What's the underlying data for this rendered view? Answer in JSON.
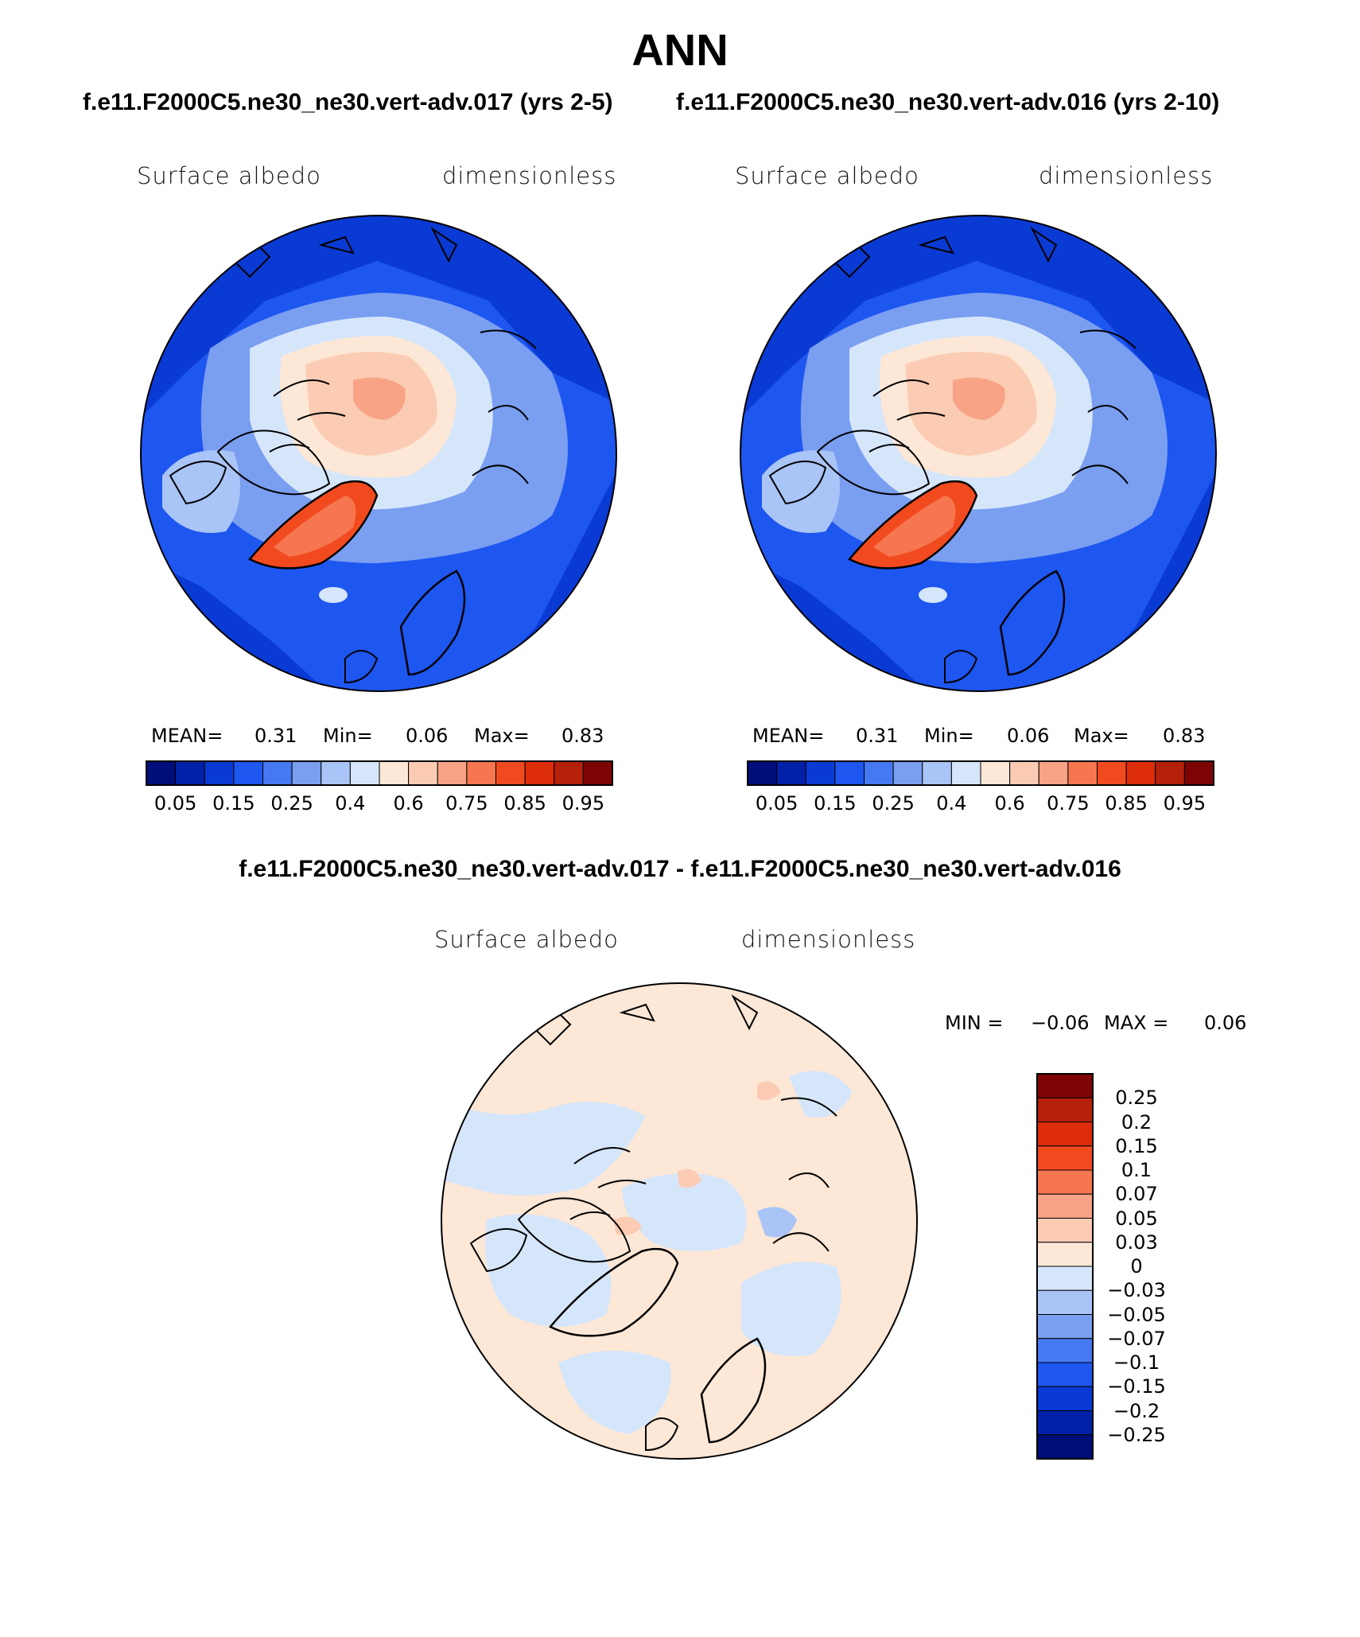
{
  "title": "ANN",
  "subtitle_left": "f.e11.F2000C5.ne30_ne30.vert-adv.017 (yrs 2-5)",
  "subtitle_right": "f.e11.F2000C5.ne30_ne30.vert-adv.016 (yrs 2-10)",
  "subtitle_diff": "f.e11.F2000C5.ne30_ne30.vert-adv.017 - f.e11.F2000C5.ne30_ne30.vert-adv.016",
  "panels": [
    {
      "variable": "Surface albedo",
      "units": "dimensionless",
      "mean_label": "MEAN=",
      "mean": "0.31",
      "min_label": "Min=",
      "min": "0.06",
      "max_label": "Max=",
      "max": "0.83"
    },
    {
      "variable": "Surface albedo",
      "units": "dimensionless",
      "mean_label": "MEAN=",
      "mean": "0.31",
      "min_label": "Min=",
      "min": "0.06",
      "max_label": "Max=",
      "max": "0.83"
    }
  ],
  "diff_panel": {
    "variable": "Surface albedo",
    "units": "dimensionless",
    "min_label": "MIN =",
    "min": "−0.06",
    "max_label": "MAX =",
    "max": "0.06"
  },
  "colorbar_main": {
    "colors": [
      "#000e7a",
      "#0021a8",
      "#0a3ad4",
      "#1e56f0",
      "#4678f2",
      "#7a9ef0",
      "#a9c4f6",
      "#d5e6fb",
      "#fde7d6",
      "#fccbb3",
      "#f8a385",
      "#f5764f",
      "#f24a1f",
      "#dc2c0a",
      "#b5200a",
      "#7d0404"
    ],
    "ticks": [
      "0.05",
      "0.15",
      "0.25",
      "0.4",
      "0.6",
      "0.75",
      "0.85",
      "0.95"
    ]
  },
  "colorbar_diff": {
    "colors_top_to_bottom": [
      "#7d0404",
      "#b5200a",
      "#dc2c0a",
      "#f24a1f",
      "#f5764f",
      "#f8a385",
      "#fccbb3",
      "#fde7d6",
      "#d5e6fb",
      "#a9c4f6",
      "#7a9ef0",
      "#4678f2",
      "#1e56f0",
      "#0a3ad4",
      "#0021a8",
      "#000e7a"
    ],
    "ticks_top_to_bottom": [
      "0.25",
      "0.2",
      "0.15",
      "0.1",
      "0.07",
      "0.05",
      "0.03",
      "0",
      "−0.03",
      "−0.05",
      "−0.07",
      "−0.1",
      "−0.15",
      "−0.2",
      "−0.25"
    ]
  }
}
